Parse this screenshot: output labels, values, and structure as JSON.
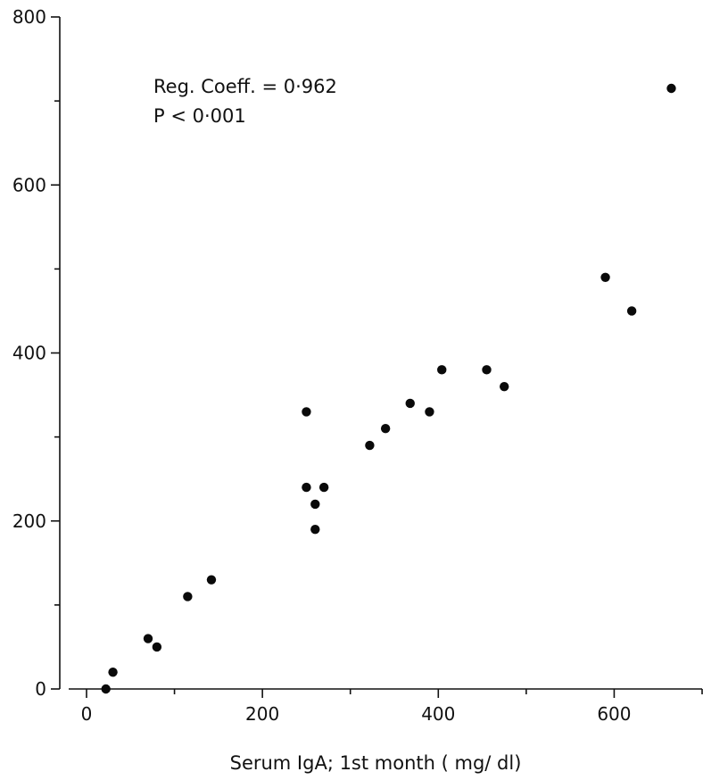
{
  "chart_data": {
    "type": "scatter",
    "title": "",
    "xlabel": "Serum IgA; 1st month ( mg/ dl)",
    "ylabel": "",
    "xlim": [
      0,
      700
    ],
    "ylim": [
      0,
      800
    ],
    "x_ticks": [
      0,
      200,
      400,
      600
    ],
    "x_minor_ticks": [
      100,
      300,
      500,
      700
    ],
    "y_ticks": [
      0,
      200,
      400,
      600,
      800
    ],
    "y_minor_ticks": [
      100,
      300,
      500,
      700
    ],
    "grid": false,
    "legend": "none",
    "annotations": [
      "Reg. Coeff. = 0·962",
      "P < 0·001"
    ],
    "point_color": "#0a0a0a",
    "points": [
      {
        "x": 22,
        "y": 0
      },
      {
        "x": 30,
        "y": 20
      },
      {
        "x": 70,
        "y": 60
      },
      {
        "x": 80,
        "y": 50
      },
      {
        "x": 115,
        "y": 110
      },
      {
        "x": 142,
        "y": 130
      },
      {
        "x": 250,
        "y": 330
      },
      {
        "x": 250,
        "y": 240
      },
      {
        "x": 260,
        "y": 220
      },
      {
        "x": 260,
        "y": 190
      },
      {
        "x": 270,
        "y": 240
      },
      {
        "x": 322,
        "y": 290
      },
      {
        "x": 340,
        "y": 310
      },
      {
        "x": 368,
        "y": 340
      },
      {
        "x": 390,
        "y": 330
      },
      {
        "x": 404,
        "y": 380
      },
      {
        "x": 455,
        "y": 380
      },
      {
        "x": 475,
        "y": 360
      },
      {
        "x": 590,
        "y": 490
      },
      {
        "x": 620,
        "y": 450
      },
      {
        "x": 665,
        "y": 715
      }
    ]
  }
}
